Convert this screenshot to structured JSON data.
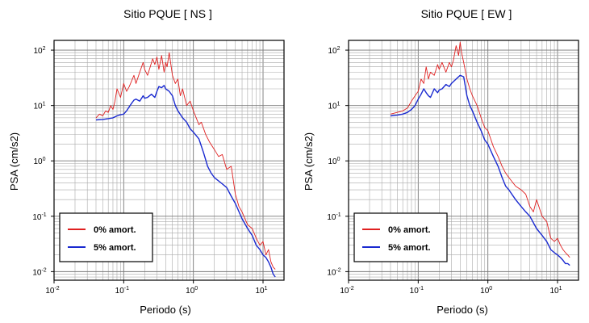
{
  "chart_data": [
    {
      "type": "line",
      "title": "Sitio PQUE [ NS ]",
      "xlabel": "Periodo (s)",
      "ylabel": "PSA (cm/s2)",
      "xscale": "log",
      "yscale": "log",
      "xlim": [
        0.01,
        20
      ],
      "ylim": [
        0.007,
        150
      ],
      "grid": true,
      "legend_position": "bottom-left",
      "xticks": [
        "10-2",
        "10-1",
        "100",
        "101"
      ],
      "yticks": [
        "10-2",
        "10-1",
        "100",
        "101",
        "102"
      ],
      "series": [
        {
          "name": "0% amort.",
          "color": "#e02020",
          "x": [
            0.04,
            0.045,
            0.05,
            0.055,
            0.06,
            0.065,
            0.07,
            0.075,
            0.08,
            0.09,
            0.1,
            0.11,
            0.12,
            0.13,
            0.14,
            0.15,
            0.17,
            0.19,
            0.2,
            0.22,
            0.24,
            0.26,
            0.28,
            0.3,
            0.32,
            0.35,
            0.38,
            0.4,
            0.42,
            0.45,
            0.5,
            0.55,
            0.6,
            0.65,
            0.7,
            0.8,
            0.9,
            1.0,
            1.1,
            1.2,
            1.3,
            1.5,
            1.7,
            2.0,
            2.3,
            2.6,
            3.0,
            3.5,
            4.0,
            4.5,
            5.0,
            6.0,
            7.0,
            8.0,
            9.0,
            10.0,
            11.0,
            12.0,
            13.0,
            14.0,
            15.0
          ],
          "y": [
            6.0,
            7.0,
            6.5,
            8.0,
            7.5,
            10.0,
            8.5,
            12.0,
            20.0,
            14.0,
            25.0,
            18.0,
            22.0,
            28.0,
            35.0,
            25.0,
            40.0,
            60.0,
            45.0,
            35.0,
            50.0,
            70.0,
            55.0,
            75.0,
            45.0,
            80.0,
            40.0,
            60.0,
            50.0,
            90.0,
            35.0,
            25.0,
            30.0,
            15.0,
            20.0,
            10.0,
            12.0,
            8.0,
            6.0,
            4.5,
            5.0,
            3.0,
            2.2,
            1.6,
            1.2,
            1.3,
            0.7,
            0.8,
            0.25,
            0.15,
            0.12,
            0.07,
            0.06,
            0.04,
            0.03,
            0.035,
            0.02,
            0.025,
            0.015,
            0.012,
            0.011
          ]
        },
        {
          "name": "5% amort.",
          "color": "#1a2ad0",
          "x": [
            0.04,
            0.05,
            0.06,
            0.07,
            0.08,
            0.09,
            0.1,
            0.11,
            0.12,
            0.13,
            0.14,
            0.15,
            0.17,
            0.19,
            0.2,
            0.22,
            0.25,
            0.28,
            0.3,
            0.32,
            0.35,
            0.38,
            0.4,
            0.45,
            0.5,
            0.55,
            0.6,
            0.7,
            0.8,
            0.9,
            1.0,
            1.2,
            1.4,
            1.6,
            1.8,
            2.0,
            2.5,
            3.0,
            3.5,
            4.0,
            5.0,
            6.0,
            7.0,
            8.0,
            9.0,
            10.0,
            11.0,
            12.0,
            13.0,
            14.0,
            15.0
          ],
          "y": [
            5.5,
            5.6,
            5.8,
            6.0,
            6.5,
            6.8,
            7.0,
            8.0,
            9.5,
            11.0,
            12.5,
            13.0,
            12.0,
            15.0,
            13.5,
            14.0,
            16.0,
            14.0,
            18.0,
            22.0,
            21.0,
            23.0,
            20.0,
            18.0,
            15.0,
            10.0,
            8.0,
            6.0,
            5.0,
            3.8,
            3.3,
            2.5,
            1.4,
            0.8,
            0.6,
            0.5,
            0.4,
            0.33,
            0.23,
            0.17,
            0.09,
            0.06,
            0.045,
            0.03,
            0.025,
            0.02,
            0.018,
            0.015,
            0.012,
            0.009,
            0.008
          ]
        }
      ]
    },
    {
      "type": "line",
      "title": "Sitio PQUE [ EW ]",
      "xlabel": "Periodo (s)",
      "ylabel": "PSA (cm/s2)",
      "xscale": "log",
      "yscale": "log",
      "xlim": [
        0.01,
        20
      ],
      "ylim": [
        0.007,
        150
      ],
      "grid": true,
      "legend_position": "bottom-left",
      "xticks": [
        "10-2",
        "10-1",
        "100",
        "101"
      ],
      "yticks": [
        "10-2",
        "10-1",
        "100",
        "101",
        "102"
      ],
      "series": [
        {
          "name": "0% amort.",
          "color": "#e02020",
          "x": [
            0.04,
            0.05,
            0.06,
            0.07,
            0.08,
            0.09,
            0.1,
            0.11,
            0.12,
            0.13,
            0.14,
            0.15,
            0.17,
            0.19,
            0.2,
            0.22,
            0.25,
            0.28,
            0.3,
            0.32,
            0.35,
            0.38,
            0.4,
            0.42,
            0.45,
            0.5,
            0.55,
            0.6,
            0.7,
            0.8,
            0.9,
            1.0,
            1.2,
            1.4,
            1.6,
            1.8,
            2.0,
            2.5,
            3.0,
            3.5,
            4.0,
            4.5,
            5.0,
            6.0,
            7.0,
            8.0,
            9.0,
            10.0,
            11.0,
            12.0,
            13.0,
            14.0,
            15.0
          ],
          "y": [
            7.0,
            7.5,
            8.0,
            9.0,
            12.0,
            15.0,
            18.0,
            30.0,
            25.0,
            50.0,
            30.0,
            40.0,
            35.0,
            55.0,
            45.0,
            60.0,
            40.0,
            60.0,
            50.0,
            65.0,
            120.0,
            80.0,
            140.0,
            90.0,
            60.0,
            30.0,
            20.0,
            15.0,
            10.0,
            6.0,
            4.0,
            3.5,
            1.8,
            1.2,
            0.8,
            0.6,
            0.5,
            0.35,
            0.3,
            0.25,
            0.15,
            0.12,
            0.2,
            0.1,
            0.08,
            0.04,
            0.035,
            0.04,
            0.03,
            0.025,
            0.022,
            0.02,
            0.018
          ]
        },
        {
          "name": "5% amort.",
          "color": "#1a2ad0",
          "x": [
            0.04,
            0.05,
            0.06,
            0.07,
            0.08,
            0.09,
            0.1,
            0.11,
            0.12,
            0.13,
            0.14,
            0.15,
            0.17,
            0.19,
            0.2,
            0.22,
            0.25,
            0.28,
            0.3,
            0.35,
            0.4,
            0.45,
            0.5,
            0.55,
            0.6,
            0.7,
            0.8,
            0.9,
            1.0,
            1.2,
            1.4,
            1.6,
            1.8,
            2.0,
            2.5,
            3.0,
            3.5,
            4.0,
            5.0,
            6.0,
            7.0,
            8.0,
            9.0,
            10.0,
            11.0,
            12.0,
            13.0,
            14.0,
            15.0
          ],
          "y": [
            6.5,
            6.7,
            7.0,
            7.5,
            8.5,
            10.0,
            13.0,
            16.0,
            20.0,
            17.0,
            15.0,
            14.0,
            20.0,
            17.0,
            19.0,
            20.0,
            24.0,
            22.0,
            25.0,
            30.0,
            35.0,
            33.0,
            15.0,
            10.0,
            8.0,
            5.0,
            3.5,
            2.4,
            2.0,
            1.2,
            0.8,
            0.5,
            0.35,
            0.3,
            0.2,
            0.15,
            0.12,
            0.1,
            0.06,
            0.045,
            0.035,
            0.025,
            0.022,
            0.02,
            0.018,
            0.016,
            0.014,
            0.014,
            0.013
          ]
        }
      ]
    }
  ]
}
